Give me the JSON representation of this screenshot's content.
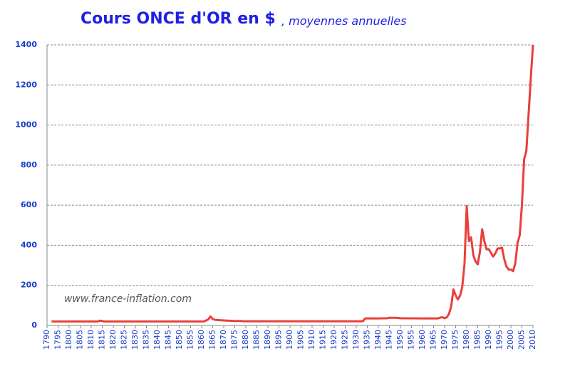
{
  "chart_data": {
    "type": "line",
    "title": "Cours ONCE d'OR en $",
    "subtitle": ", moyennes annuelles",
    "annotation": "www.france-inflation.com",
    "x": [
      1792,
      1800,
      1810,
      1813,
      1814,
      1815,
      1816,
      1820,
      1830,
      1840,
      1850,
      1860,
      1861,
      1862,
      1863,
      1864,
      1865,
      1866,
      1870,
      1875,
      1878,
      1879,
      1890,
      1900,
      1910,
      1920,
      1930,
      1933,
      1934,
      1940,
      1944,
      1945,
      1948,
      1950,
      1960,
      1967,
      1968,
      1969,
      1970,
      1971,
      1972,
      1973,
      1974,
      1975,
      1976,
      1977,
      1978,
      1979,
      1980,
      1981,
      1982,
      1983,
      1984,
      1985,
      1986,
      1987,
      1988,
      1989,
      1990,
      1991,
      1992,
      1993,
      1994,
      1995,
      1996,
      1997,
      1998,
      1999,
      2000,
      2001,
      2002,
      2003,
      2004,
      2005,
      2006,
      2007,
      2008,
      2009,
      2010
    ],
    "series": [
      {
        "name": "Cours",
        "color": "#e8403a",
        "values": [
          20,
          20,
          20,
          20,
          24,
          22,
          20,
          20,
          20,
          20,
          20,
          20,
          20,
          25,
          30,
          45,
          32,
          28,
          25,
          22,
          22,
          21,
          21,
          21,
          21,
          21,
          21,
          21,
          35,
          35,
          36,
          38,
          38,
          36,
          35,
          35,
          39,
          41,
          36,
          41,
          58,
          97,
          180,
          150,
          130,
          148,
          193,
          306,
          595,
          420,
          440,
          350,
          320,
          305,
          368,
          480,
          420,
          380,
          380,
          362,
          344,
          360,
          384,
          384,
          388,
          331,
          294,
          279,
          279,
          271,
          310,
          410,
          450,
          600,
          830,
          870,
          1050,
          1230,
          1400
        ]
      }
    ],
    "xlim": [
      1790,
      2010
    ],
    "xticks": [
      1790,
      1795,
      1800,
      1805,
      1810,
      1815,
      1820,
      1825,
      1830,
      1835,
      1840,
      1845,
      1850,
      1855,
      1860,
      1865,
      1870,
      1875,
      1880,
      1885,
      1890,
      1895,
      1900,
      1905,
      1910,
      1915,
      1920,
      1925,
      1930,
      1935,
      1940,
      1945,
      1950,
      1955,
      1960,
      1965,
      1970,
      1975,
      1980,
      1985,
      1990,
      1995,
      2000,
      2005,
      2010
    ],
    "ylim": [
      0,
      1400
    ],
    "yticks": [
      0,
      200,
      400,
      600,
      800,
      1000,
      1200,
      1400
    ],
    "grid": true
  }
}
